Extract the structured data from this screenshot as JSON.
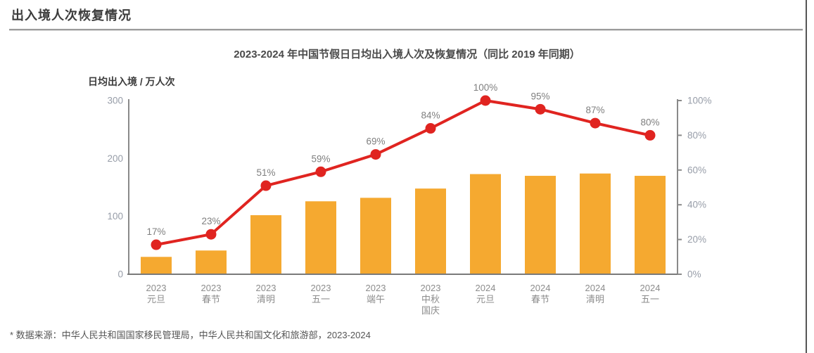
{
  "page": {
    "header_title": "出入境人次恢复情况",
    "footnote": "* 数据来源：中华人民共和国国家移民管理局，中华人民共和国文化和旅游部，2023-2024"
  },
  "colors": {
    "bar": "#F5A930",
    "line": "#E02420",
    "axis": "#8a8a8a",
    "baseline": "#7a7a7a",
    "tick_label": "#979DA8",
    "x_label": "#8c8c8c",
    "data_label": "#7f7f7f"
  },
  "chart_data": {
    "type": "bar",
    "subtype": "combo-bar-line-dual-axis",
    "title": "2023-2024 年中国节假日日均出入境人次及恢复情况（同比 2019 年同期）",
    "y_left": {
      "label": "日均出入境 / 万人次",
      "ticks": [
        "0",
        "100",
        "200",
        "300"
      ],
      "tick_values": [
        0,
        100,
        200,
        300
      ],
      "min": 0,
      "max": 300,
      "grid": false
    },
    "y_right": {
      "ticks": [
        "0%",
        "20%",
        "40%",
        "60%",
        "80%",
        "100%"
      ],
      "tick_values": [
        0,
        20,
        40,
        60,
        80,
        100
      ],
      "min": 0,
      "max": 100
    },
    "categories": [
      [
        "2023",
        "元旦"
      ],
      [
        "2023",
        "春节"
      ],
      [
        "2023",
        "清明"
      ],
      [
        "2023",
        "五一"
      ],
      [
        "2023",
        "端午"
      ],
      [
        "2023",
        "中秋",
        "国庆"
      ],
      [
        "2024",
        "元旦"
      ],
      [
        "2024",
        "春节"
      ],
      [
        "2024",
        "清明"
      ],
      [
        "2024",
        "五一"
      ]
    ],
    "series": [
      {
        "name": "日均出入境人次（万人次）",
        "type": "bar",
        "axis": "left",
        "values": [
          30,
          41,
          102,
          126,
          132,
          148,
          173,
          170,
          174,
          170
        ]
      },
      {
        "name": "恢复情况（同比 2019 年同期）",
        "type": "line",
        "axis": "right",
        "values": [
          17,
          23,
          51,
          59,
          69,
          84,
          100,
          95,
          87,
          80
        ],
        "labels": [
          "17%",
          "23%",
          "51%",
          "59%",
          "69%",
          "84%",
          "100%",
          "95%",
          "87%",
          "80%"
        ]
      }
    ],
    "legend": "none"
  }
}
